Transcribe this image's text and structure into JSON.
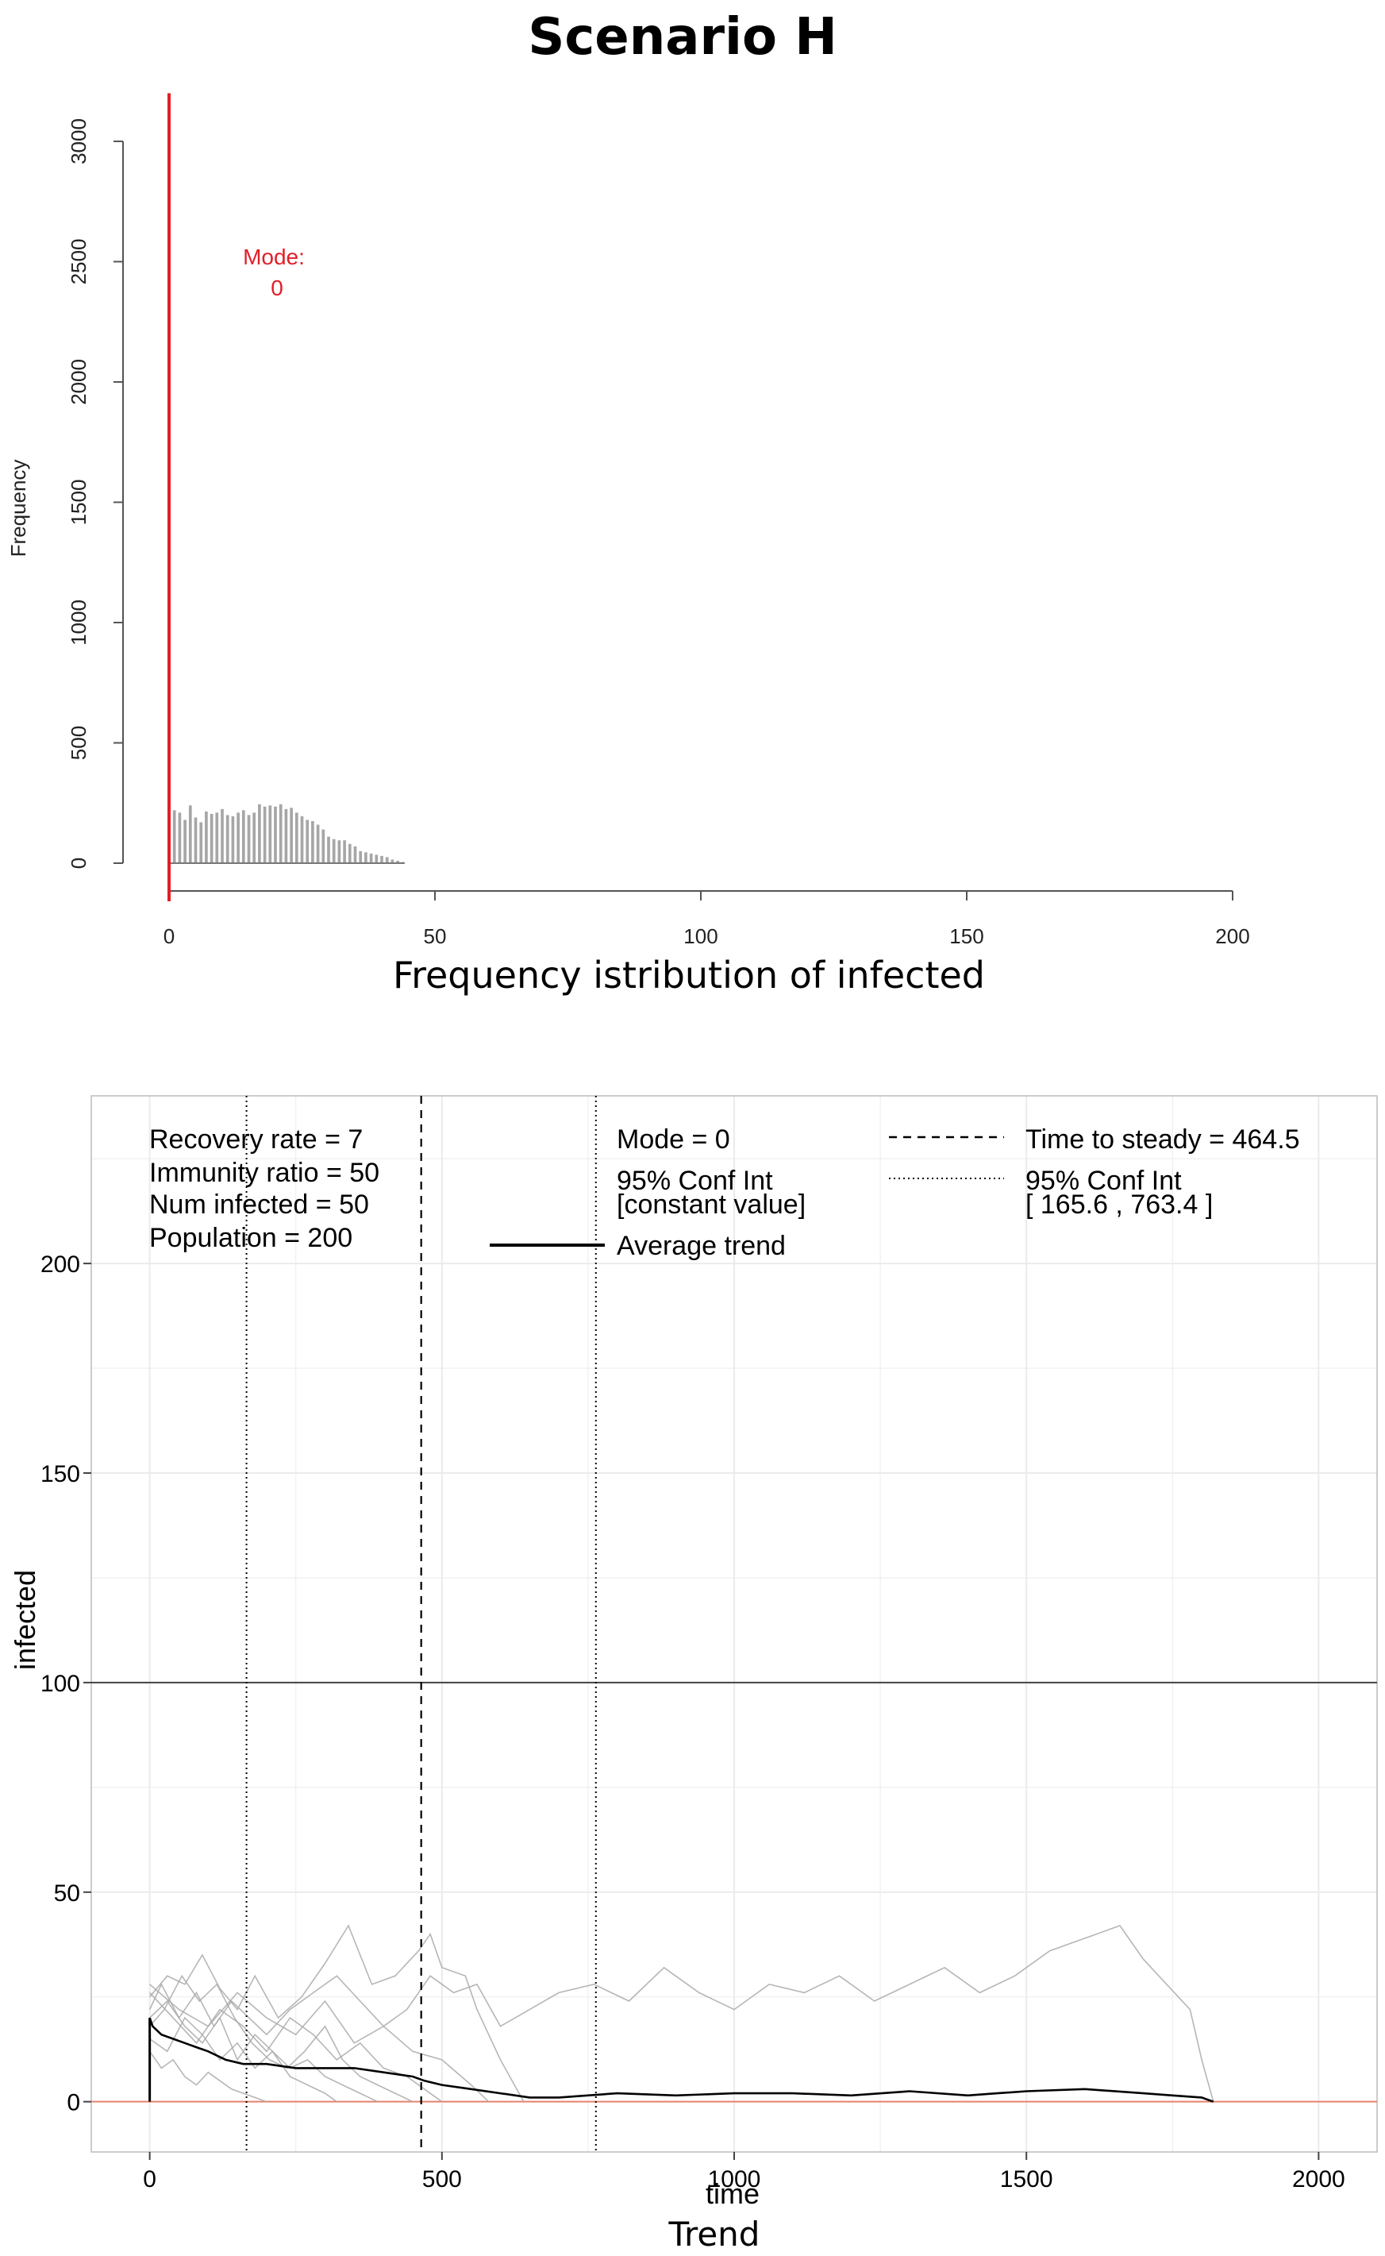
{
  "page": {
    "title": "Scenario H"
  },
  "chart_data": [
    {
      "type": "bar",
      "title": "",
      "caption": "Frequency istribution of infected",
      "ylabel": "Frequency",
      "xlabel": "",
      "xlim": [
        0,
        200
      ],
      "ylim": [
        0,
        3000
      ],
      "xticks": [
        0,
        50,
        100,
        150,
        200
      ],
      "yticks": [
        0,
        500,
        1000,
        1500,
        2000,
        2500,
        3000
      ],
      "mode_value": 0,
      "mode_frequency": 3200,
      "mode_label_line1": "Mode:",
      "mode_label_line2": "0",
      "colors": {
        "bars": "#a6a6a6",
        "mode": "#e21e26"
      },
      "x": [
        1,
        2,
        3,
        4,
        5,
        6,
        7,
        8,
        9,
        10,
        11,
        12,
        13,
        14,
        15,
        16,
        17,
        18,
        19,
        20,
        21,
        22,
        23,
        24,
        25,
        26,
        27,
        28,
        29,
        30,
        31,
        32,
        33,
        34,
        35,
        36,
        37,
        38,
        39,
        40,
        41,
        42,
        43,
        44
      ],
      "values": [
        220,
        210,
        180,
        240,
        190,
        170,
        215,
        205,
        210,
        225,
        200,
        195,
        210,
        220,
        200,
        210,
        245,
        235,
        240,
        235,
        245,
        225,
        230,
        210,
        195,
        180,
        175,
        160,
        140,
        110,
        100,
        95,
        95,
        80,
        70,
        50,
        45,
        40,
        35,
        30,
        25,
        15,
        10,
        5
      ]
    },
    {
      "type": "line",
      "title": "",
      "caption": "Trend",
      "xlabel": "time",
      "ylabel": "infected",
      "xlim": [
        -100,
        2100
      ],
      "ylim": [
        -12,
        240
      ],
      "xticks": [
        0,
        500,
        1000,
        1500,
        2000
      ],
      "yticks": [
        0,
        50,
        100,
        150,
        200
      ],
      "grid": true,
      "hline_population_half": 100,
      "hline_zero": 0,
      "time_to_steady": 464.5,
      "ci_low": 165.6,
      "ci_high": 763.4,
      "mode_conf_int": "[constant value]",
      "colors": {
        "average": "#000000",
        "runs": "#a9a9a9",
        "zero_line": "#e8826f",
        "hline": "#444444",
        "grid": "#ebebeb"
      },
      "params_text": [
        "Recovery rate = 7",
        "Immunity ratio = 50",
        "Num infected = 50",
        "Population = 200"
      ],
      "legend": {
        "mode": "Mode = 0",
        "mode_ci_label": "95% Conf Int",
        "mode_ci_value": "[constant value]",
        "average": "Average trend",
        "steady": "Time to steady = 464.5",
        "ci_label": "95% Conf Int",
        "ci_value": "[ 165.6 , 763.4 ]"
      },
      "average_trend": {
        "x": [
          0,
          5,
          20,
          40,
          60,
          80,
          100,
          130,
          160,
          200,
          250,
          300,
          350,
          400,
          450,
          470,
          500,
          550,
          600,
          650,
          700,
          800,
          900,
          1000,
          1100,
          1200,
          1300,
          1400,
          1450,
          1500,
          1600,
          1700,
          1750,
          1800,
          1820
        ],
        "y": [
          20,
          18,
          16,
          15,
          14,
          13,
          12,
          10,
          9,
          9,
          8,
          8,
          8,
          7,
          6,
          5,
          4,
          3,
          2,
          1,
          1,
          2,
          1.5,
          2,
          2,
          1.5,
          2.5,
          1.5,
          2,
          2.5,
          3,
          2,
          1.5,
          1,
          0
        ]
      },
      "runs": [
        {
          "x": [
            0,
            30,
            60,
            90,
            120,
            150,
            180,
            220,
            260,
            300,
            340,
            380,
            420,
            460,
            480,
            500,
            540,
            560,
            600,
            640
          ],
          "y": [
            25,
            30,
            28,
            35,
            27,
            22,
            30,
            20,
            25,
            33,
            42,
            28,
            30,
            36,
            40,
            32,
            30,
            22,
            10,
            0
          ]
        },
        {
          "x": [
            0,
            20,
            50,
            80,
            110,
            140,
            170,
            200,
            240,
            280,
            320,
            360,
            400,
            440,
            480,
            520,
            560,
            600,
            650,
            700,
            760,
            820,
            880,
            940,
            1000,
            1060,
            1120,
            1180,
            1240,
            1300,
            1360,
            1420,
            1480,
            1540,
            1580,
            1620,
            1660,
            1700,
            1740,
            1780,
            1800,
            1820
          ],
          "y": [
            22,
            28,
            20,
            26,
            18,
            24,
            20,
            16,
            22,
            26,
            30,
            24,
            18,
            22,
            30,
            26,
            28,
            18,
            22,
            26,
            28,
            24,
            32,
            26,
            22,
            28,
            26,
            30,
            24,
            28,
            32,
            26,
            30,
            36,
            38,
            40,
            42,
            34,
            28,
            22,
            10,
            0
          ]
        },
        {
          "x": [
            0,
            25,
            55,
            85,
            115,
            145,
            175,
            205,
            235,
            265,
            300,
            330,
            360,
            390,
            420,
            450
          ],
          "y": [
            18,
            22,
            30,
            24,
            28,
            20,
            14,
            10,
            8,
            12,
            18,
            10,
            6,
            4,
            2,
            0
          ]
        },
        {
          "x": [
            0,
            30,
            60,
            90,
            120,
            150,
            180,
            210,
            240,
            270,
            300,
            320
          ],
          "y": [
            15,
            12,
            20,
            16,
            10,
            14,
            8,
            12,
            6,
            4,
            2,
            0
          ]
        },
        {
          "x": [
            0,
            40,
            80,
            120,
            160,
            200,
            240,
            280,
            320,
            360,
            400,
            440,
            470,
            500
          ],
          "y": [
            26,
            20,
            14,
            22,
            18,
            12,
            20,
            16,
            10,
            14,
            8,
            6,
            3,
            0
          ]
        },
        {
          "x": [
            0,
            20,
            40,
            60,
            80,
            100,
            120,
            140,
            160,
            180,
            200
          ],
          "y": [
            12,
            8,
            10,
            6,
            4,
            7,
            5,
            3,
            2,
            1,
            0
          ]
        },
        {
          "x": [
            0,
            30,
            60,
            90,
            120,
            150,
            180,
            210,
            240,
            270,
            300,
            330,
            360,
            390
          ],
          "y": [
            20,
            24,
            18,
            14,
            20,
            10,
            16,
            12,
            8,
            10,
            6,
            4,
            2,
            0
          ]
        },
        {
          "x": [
            0,
            50,
            100,
            150,
            200,
            250,
            300,
            350,
            400,
            450,
            500,
            550,
            580
          ],
          "y": [
            28,
            22,
            18,
            26,
            20,
            16,
            24,
            14,
            18,
            12,
            10,
            4,
            0
          ]
        }
      ]
    }
  ]
}
